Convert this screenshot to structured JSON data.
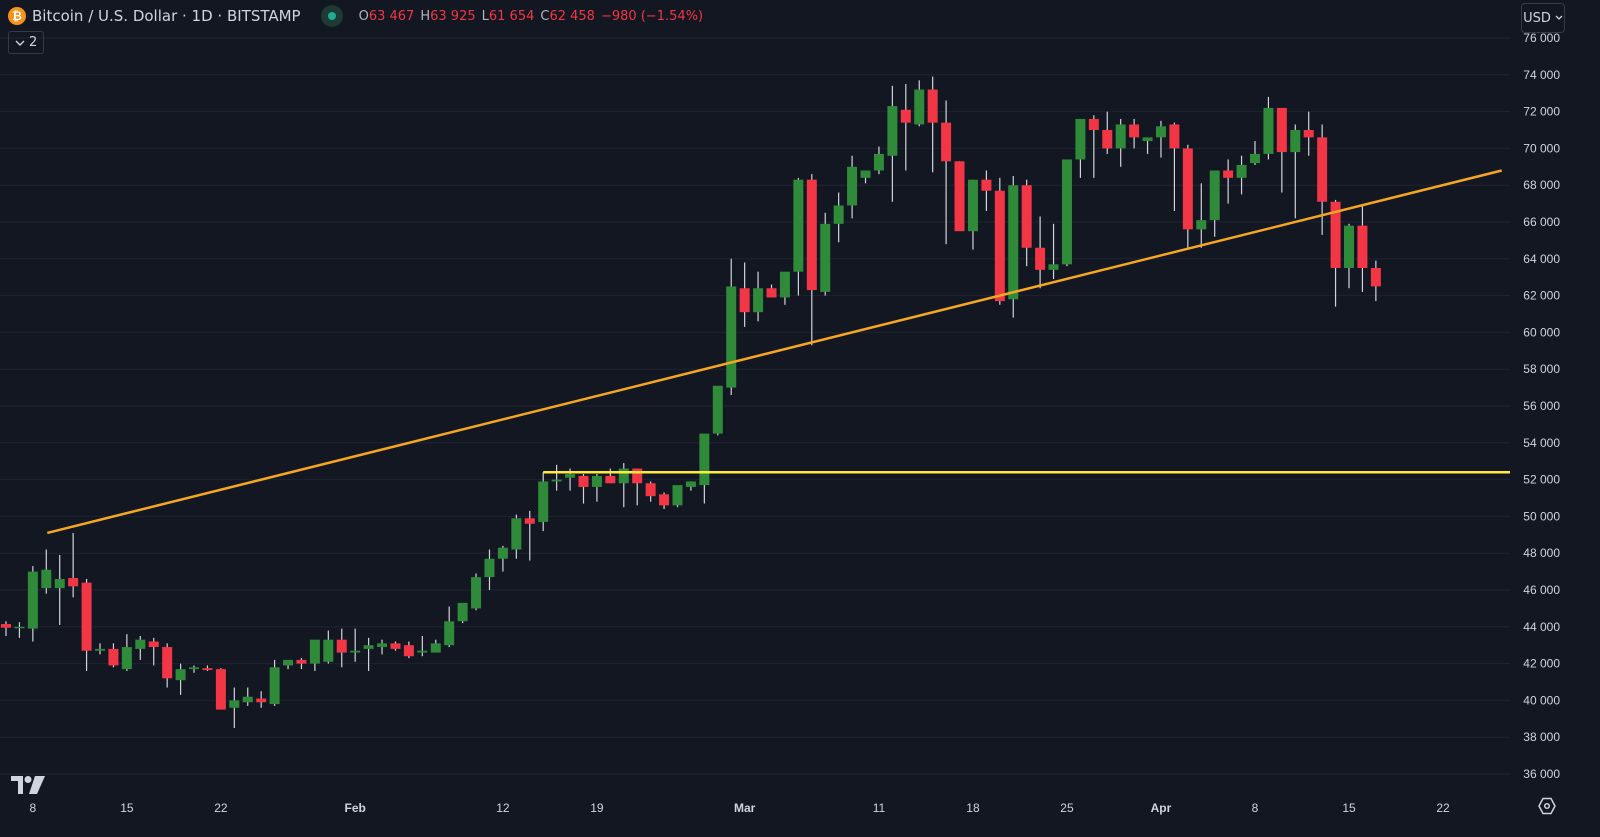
{
  "header": {
    "symbol_title": "Bitcoin / U.S. Dollar · 1D · BITSTAMP",
    "logo_glyph": "₿",
    "ohlc": {
      "open_label": "O",
      "open": "63 467",
      "high_label": "H",
      "high": "63 925",
      "low_label": "L",
      "low": "61 654",
      "close_label": "C",
      "close": "62 458",
      "change": "−980 (−1.54%)"
    },
    "collapse_button": {
      "icon": "chevron-down-icon",
      "count": "2"
    },
    "currency": "USD"
  },
  "colors": {
    "background": "#131722",
    "grid": "#1f2330",
    "up": "#2f8a3a",
    "down": "#f23645",
    "wick": "#d1d4dc",
    "trendline": "#f5a623",
    "horizontal_line": "#ffe93d",
    "text": "#d1d4dc"
  },
  "chart_data": {
    "type": "candlestick",
    "title": "Bitcoin / U.S. Dollar · 1D · BITSTAMP",
    "xlabel": "",
    "ylabel": "USD",
    "ylim": [
      35000,
      77000
    ],
    "y_ticks": [
      "76 000",
      "74 000",
      "72 000",
      "70 000",
      "68 000",
      "66 000",
      "64 000",
      "62 000",
      "60 000",
      "58 000",
      "56 000",
      "54 000",
      "52 000",
      "50 000",
      "48 000",
      "46 000",
      "44 000",
      "42 000",
      "40 000",
      "38 000",
      "36 000"
    ],
    "x_ticks": [
      {
        "label": "8",
        "day": 2
      },
      {
        "label": "15",
        "day": 9
      },
      {
        "label": "22",
        "day": 16
      },
      {
        "label": "Feb",
        "day": 26
      },
      {
        "label": "12",
        "day": 37
      },
      {
        "label": "19",
        "day": 44
      },
      {
        "label": "Mar",
        "day": 55
      },
      {
        "label": "11",
        "day": 65
      },
      {
        "label": "18",
        "day": 72
      },
      {
        "label": "25",
        "day": 79
      },
      {
        "label": "Apr",
        "day": 86
      },
      {
        "label": "8",
        "day": 93
      },
      {
        "label": "15",
        "day": 100
      },
      {
        "label": "22",
        "day": 107
      }
    ],
    "grid": true,
    "start_date": "Jan 6",
    "candles": [
      [
        44150,
        44300,
        43500,
        43950
      ],
      [
        44000,
        44250,
        43400,
        44000
      ],
      [
        43900,
        47300,
        43200,
        47000
      ],
      [
        46100,
        48200,
        45800,
        47100
      ],
      [
        46100,
        47900,
        44100,
        46600
      ],
      [
        46650,
        49100,
        45600,
        46200
      ],
      [
        46400,
        46600,
        41600,
        42700
      ],
      [
        42700,
        43100,
        42500,
        42800
      ],
      [
        42800,
        43100,
        41800,
        41900
      ],
      [
        41700,
        43600,
        41600,
        42900
      ],
      [
        42800,
        43500,
        42200,
        43300
      ],
      [
        43200,
        43400,
        41900,
        42900
      ],
      [
        42900,
        43100,
        40700,
        41200
      ],
      [
        41100,
        42000,
        40300,
        41700
      ],
      [
        41700,
        41900,
        41500,
        41800
      ],
      [
        41750,
        41900,
        41600,
        41650
      ],
      [
        41700,
        41750,
        39500,
        39500
      ],
      [
        39600,
        40700,
        38500,
        40000
      ],
      [
        39900,
        40700,
        39700,
        40200
      ],
      [
        40100,
        40500,
        39600,
        39900
      ],
      [
        39800,
        42200,
        39700,
        41800
      ],
      [
        41900,
        42200,
        41700,
        42200
      ],
      [
        42200,
        42300,
        41700,
        42000
      ],
      [
        42000,
        42800,
        41600,
        43300
      ],
      [
        42100,
        43800,
        42000,
        43300
      ],
      [
        43300,
        43900,
        41800,
        42600
      ],
      [
        42600,
        43900,
        42100,
        42700
      ],
      [
        42800,
        43400,
        41600,
        43000
      ],
      [
        42900,
        43300,
        42500,
        43100
      ],
      [
        43100,
        43200,
        42700,
        42800
      ],
      [
        43000,
        43200,
        42300,
        42400
      ],
      [
        42600,
        43500,
        42400,
        42700
      ],
      [
        42600,
        43300,
        42600,
        43100
      ],
      [
        43000,
        45100,
        42900,
        44300
      ],
      [
        44300,
        45100,
        44200,
        45300
      ],
      [
        45000,
        46900,
        44900,
        46700
      ],
      [
        46700,
        48200,
        46000,
        47700
      ],
      [
        47700,
        48400,
        47000,
        48300
      ],
      [
        48200,
        50100,
        47700,
        49900
      ],
      [
        49900,
        50300,
        47600,
        49600
      ],
      [
        49700,
        52400,
        49200,
        51900
      ],
      [
        51900,
        52800,
        51400,
        52000
      ],
      [
        52100,
        52600,
        51400,
        52300
      ],
      [
        52200,
        52300,
        50700,
        51600
      ],
      [
        51600,
        52300,
        50800,
        52200
      ],
      [
        52200,
        52600,
        51800,
        51800
      ],
      [
        51800,
        52900,
        50500,
        52600
      ],
      [
        52600,
        52600,
        50600,
        51800
      ],
      [
        51800,
        51900,
        50800,
        51100
      ],
      [
        51200,
        51300,
        50400,
        50600
      ],
      [
        50600,
        51500,
        50500,
        51700
      ],
      [
        51600,
        51900,
        51400,
        51900
      ],
      [
        51700,
        54400,
        50700,
        54500
      ],
      [
        54500,
        55100,
        54400,
        57100
      ],
      [
        57000,
        64000,
        56600,
        62500
      ],
      [
        62400,
        63800,
        60300,
        61100
      ],
      [
        61100,
        63300,
        60600,
        62400
      ],
      [
        62400,
        62600,
        61900,
        61900
      ],
      [
        61900,
        63100,
        61500,
        63300
      ],
      [
        63300,
        68400,
        62000,
        68300
      ],
      [
        68300,
        68600,
        59300,
        62300
      ],
      [
        62200,
        66500,
        62000,
        65900
      ],
      [
        65900,
        67600,
        64900,
        66900
      ],
      [
        66900,
        69600,
        66200,
        69000
      ],
      [
        68400,
        68700,
        68100,
        68800
      ],
      [
        68800,
        70100,
        68600,
        69700
      ],
      [
        69600,
        73400,
        67100,
        72300
      ],
      [
        72100,
        73500,
        68800,
        71400
      ],
      [
        71300,
        73700,
        71200,
        73200
      ],
      [
        73200,
        73900,
        68700,
        71400
      ],
      [
        71400,
        72600,
        64800,
        69300
      ],
      [
        69300,
        69300,
        65600,
        65500
      ],
      [
        65500,
        68300,
        64500,
        68300
      ],
      [
        68300,
        68800,
        66600,
        67700
      ],
      [
        67700,
        68400,
        61500,
        61700
      ],
      [
        61800,
        68500,
        60800,
        68000
      ],
      [
        68000,
        68300,
        63600,
        64600
      ],
      [
        64600,
        66300,
        62400,
        63400
      ],
      [
        63400,
        65900,
        62900,
        63700
      ],
      [
        63700,
        67700,
        63600,
        69400
      ],
      [
        69400,
        71600,
        68400,
        71600
      ],
      [
        71600,
        71800,
        68400,
        71000
      ],
      [
        71000,
        72000,
        69700,
        70000
      ],
      [
        70000,
        71600,
        69000,
        71300
      ],
      [
        71300,
        71600,
        70000,
        70600
      ],
      [
        70400,
        70500,
        69700,
        70600
      ],
      [
        70600,
        71500,
        69500,
        71200
      ],
      [
        71300,
        71400,
        66600,
        70000
      ],
      [
        70000,
        70200,
        64500,
        65600
      ],
      [
        65600,
        68100,
        64600,
        66100
      ],
      [
        66100,
        68300,
        65200,
        68800
      ],
      [
        68800,
        69400,
        67000,
        68400
      ],
      [
        68400,
        69600,
        67500,
        69100
      ],
      [
        69200,
        70400,
        69100,
        69700
      ],
      [
        69700,
        72800,
        69400,
        72200
      ],
      [
        72200,
        72100,
        67600,
        69800
      ],
      [
        69800,
        71300,
        66200,
        71000
      ],
      [
        71000,
        72000,
        69600,
        70600
      ],
      [
        70600,
        71300,
        65300,
        67100
      ],
      [
        67100,
        67200,
        61400,
        63500
      ],
      [
        63500,
        65900,
        62400,
        65800
      ],
      [
        65800,
        66900,
        62200,
        63500
      ],
      [
        63500,
        63900,
        61700,
        62500
      ]
    ],
    "annotations": [
      {
        "type": "trendline",
        "color": "#f5a623",
        "from": {
          "day": 3,
          "price": 49100
        },
        "to": {
          "day": 111,
          "price": 68800
        }
      },
      {
        "type": "horizontal_ray",
        "color": "#ffe93d",
        "from_day": 40,
        "price": 52400
      }
    ]
  },
  "footer": {
    "logo": "TV",
    "settings_icon": "settings-icon"
  }
}
